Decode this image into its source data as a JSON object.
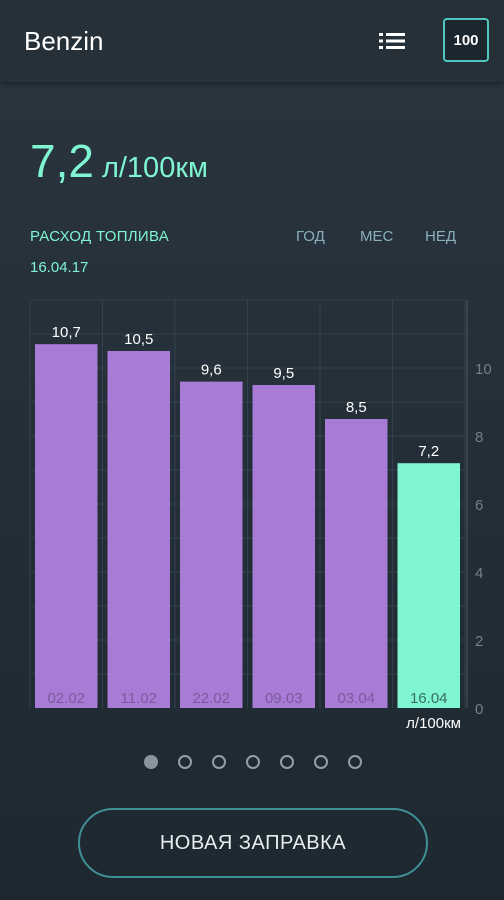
{
  "app": {
    "title": "Benzin"
  },
  "toolbar": {
    "list_icon": "list-icon",
    "hundred_label": "100"
  },
  "summary": {
    "value": "7,2",
    "unit": "л/100км"
  },
  "chart_header": {
    "label": "РАСХОД ТОПЛИВА",
    "date": "16.04.17"
  },
  "period_tabs": [
    "ГОД",
    "МЕС",
    "НЕД"
  ],
  "chart_data": {
    "type": "bar",
    "categories": [
      "02.02",
      "11.02",
      "22.02",
      "09.03",
      "03.04",
      "16.04"
    ],
    "values": [
      10.7,
      10.5,
      9.6,
      9.5,
      8.5,
      7.2
    ],
    "value_labels": [
      "10,7",
      "10,5",
      "9,6",
      "9,5",
      "8,5",
      "7,2"
    ],
    "y_ticks": [
      0,
      2,
      4,
      6,
      8,
      10
    ],
    "ylim": [
      0,
      12
    ],
    "unit_label": "л/100км",
    "grid": true,
    "bar_color": "#a87bd6",
    "highlight_color": "#7ff5d2",
    "highlight_index": 5
  },
  "pager": {
    "count": 7,
    "active": 0
  },
  "new_button": {
    "label": "НОВАЯ ЗАПРАВКА"
  },
  "colors": {
    "accent": "#7ff5d2",
    "bar": "#a87bd6",
    "background": "#24303a"
  }
}
